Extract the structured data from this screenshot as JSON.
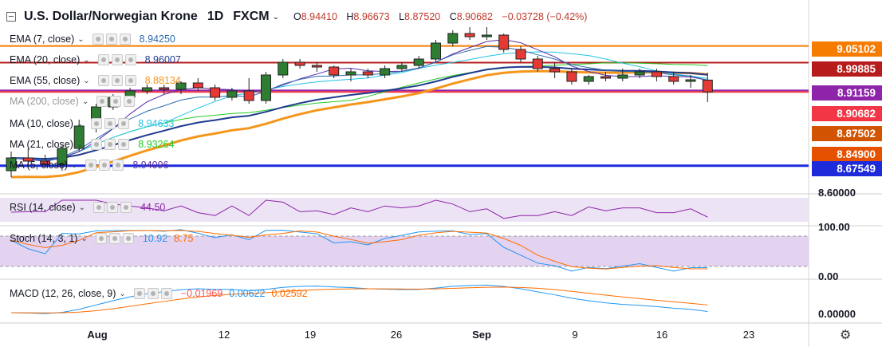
{
  "header": {
    "title": "U.S. Dollar/Norwegian Krone",
    "timeframe": "1D",
    "source": "FXCM",
    "open_label": "O",
    "open": "8.94410",
    "high_label": "H",
    "high": "8.96673",
    "low_label": "L",
    "low": "8.87520",
    "close_label": "C",
    "close": "8.90682",
    "change": "−0.03728 (−0.42%)"
  },
  "studies": {
    "ema7": {
      "label": "EMA (7, close)",
      "value": "8.94250",
      "color": "#2b6cb0"
    },
    "ema20": {
      "label": "EMA (20, close)",
      "value": "8.96007",
      "color": "#1f3b8f"
    },
    "ema55": {
      "label": "EMA (55, close)",
      "value": "8.88134",
      "color": "#f5961c"
    },
    "ma200": {
      "label": "MA (200, close)"
    },
    "ma10": {
      "label": "MA (10, close)",
      "value": "8.94633",
      "color": "#22c3e6"
    },
    "ma21": {
      "label": "MA (21, close)",
      "value": "8.93264",
      "color": "#22cc22"
    },
    "ma5": {
      "label": "MA (5, close)",
      "value": "8.94096",
      "color": "#5a2ea6"
    },
    "rsi": {
      "label": "RSI (14, close)",
      "value": "44.50",
      "color": "#8e24aa"
    },
    "stoch": {
      "label": "Stoch (14, 3, 1)",
      "k": "10.92",
      "d": "8.75",
      "k_color": "#2196f3",
      "d_color": "#ff6d00"
    },
    "macd": {
      "label": "MACD (12, 26, close, 9)",
      "hist": "−0.01969",
      "macd": "0.00622",
      "signal": "0.02592"
    }
  },
  "price_badges": [
    {
      "text": "9.05102",
      "bg": "#f57c00",
      "fg": "#ffffff"
    },
    {
      "text": "8.99885",
      "bg": "#b71c1c",
      "fg": "#ffffff"
    },
    {
      "text": "8.91159",
      "bg": "#8e24aa",
      "fg": "#ffffff"
    },
    {
      "text": "8.90682",
      "bg": "#f23645",
      "fg": "#ffffff"
    },
    {
      "text": "8.87502",
      "bg": "#d35400",
      "fg": "#ffffff"
    },
    {
      "text": "8.84900",
      "bg": "#e65100",
      "fg": "#ffffff"
    },
    {
      "text": "8.67549",
      "bg": "#1d2bdb",
      "fg": "#ffffff"
    }
  ],
  "axis": {
    "price_bottom": "8.60000",
    "stoch_top": "100.00",
    "stoch_bottom": "0.00",
    "macd_zero": "0.00000",
    "x_labels": [
      "Aug",
      "12",
      "19",
      "26",
      "Sep",
      "9",
      "16",
      "23"
    ]
  },
  "chart_data": {
    "type": "candlestick",
    "title": "U.S. Dollar/Norwegian Krone",
    "ohlc": [
      [
        8.66,
        8.72,
        8.64,
        8.7
      ],
      [
        8.7,
        8.73,
        8.67,
        8.69
      ],
      [
        8.69,
        8.71,
        8.67,
        8.68
      ],
      [
        8.68,
        8.74,
        8.66,
        8.73
      ],
      [
        8.73,
        8.82,
        8.72,
        8.8
      ],
      [
        8.8,
        8.87,
        8.78,
        8.86
      ],
      [
        8.86,
        8.9,
        8.85,
        8.89
      ],
      [
        8.89,
        8.92,
        8.87,
        8.91
      ],
      [
        8.91,
        8.93,
        8.9,
        8.92
      ],
      [
        8.92,
        8.93,
        8.9,
        8.915
      ],
      [
        8.915,
        8.94,
        8.9,
        8.935
      ],
      [
        8.935,
        8.95,
        8.91,
        8.92
      ],
      [
        8.92,
        8.93,
        8.88,
        8.89
      ],
      [
        8.89,
        8.92,
        8.88,
        8.91
      ],
      [
        8.91,
        8.95,
        8.87,
        8.88
      ],
      [
        8.88,
        8.97,
        8.87,
        8.96
      ],
      [
        8.96,
        9.01,
        8.95,
        9.0
      ],
      [
        9.0,
        9.01,
        8.98,
        8.99
      ],
      [
        8.99,
        9.0,
        8.97,
        8.985
      ],
      [
        8.985,
        8.99,
        8.95,
        8.96
      ],
      [
        8.96,
        8.98,
        8.94,
        8.97
      ],
      [
        8.97,
        8.98,
        8.95,
        8.96
      ],
      [
        8.96,
        8.99,
        8.95,
        8.98
      ],
      [
        8.98,
        9.0,
        8.97,
        8.99
      ],
      [
        8.99,
        9.02,
        8.98,
        9.01
      ],
      [
        9.01,
        9.07,
        9.0,
        9.06
      ],
      [
        9.06,
        9.1,
        9.05,
        9.09
      ],
      [
        9.09,
        9.11,
        9.07,
        9.08
      ],
      [
        9.08,
        9.11,
        9.07,
        9.085
      ],
      [
        9.085,
        9.09,
        9.03,
        9.04
      ],
      [
        9.04,
        9.05,
        9.0,
        9.01
      ],
      [
        9.01,
        9.02,
        8.97,
        8.98
      ],
      [
        8.98,
        9.0,
        8.95,
        8.97
      ],
      [
        8.97,
        8.98,
        8.93,
        8.94
      ],
      [
        8.94,
        8.96,
        8.93,
        8.955
      ],
      [
        8.955,
        8.97,
        8.94,
        8.95
      ],
      [
        8.95,
        8.98,
        8.94,
        8.96
      ],
      [
        8.96,
        8.98,
        8.95,
        8.97
      ],
      [
        8.97,
        8.98,
        8.94,
        8.955
      ],
      [
        8.955,
        8.97,
        8.93,
        8.94
      ],
      [
        8.94,
        8.96,
        8.92,
        8.945
      ],
      [
        8.944,
        8.967,
        8.875,
        8.907
      ]
    ],
    "horizontal_levels": [
      9.05102,
      8.99885,
      8.91159,
      8.90682,
      8.87502,
      8.849,
      8.67549
    ],
    "ylim": [
      8.6,
      9.1
    ],
    "x_labels": [
      "Aug",
      "12",
      "19",
      "26",
      "Sep",
      "9",
      "16",
      "23"
    ]
  }
}
